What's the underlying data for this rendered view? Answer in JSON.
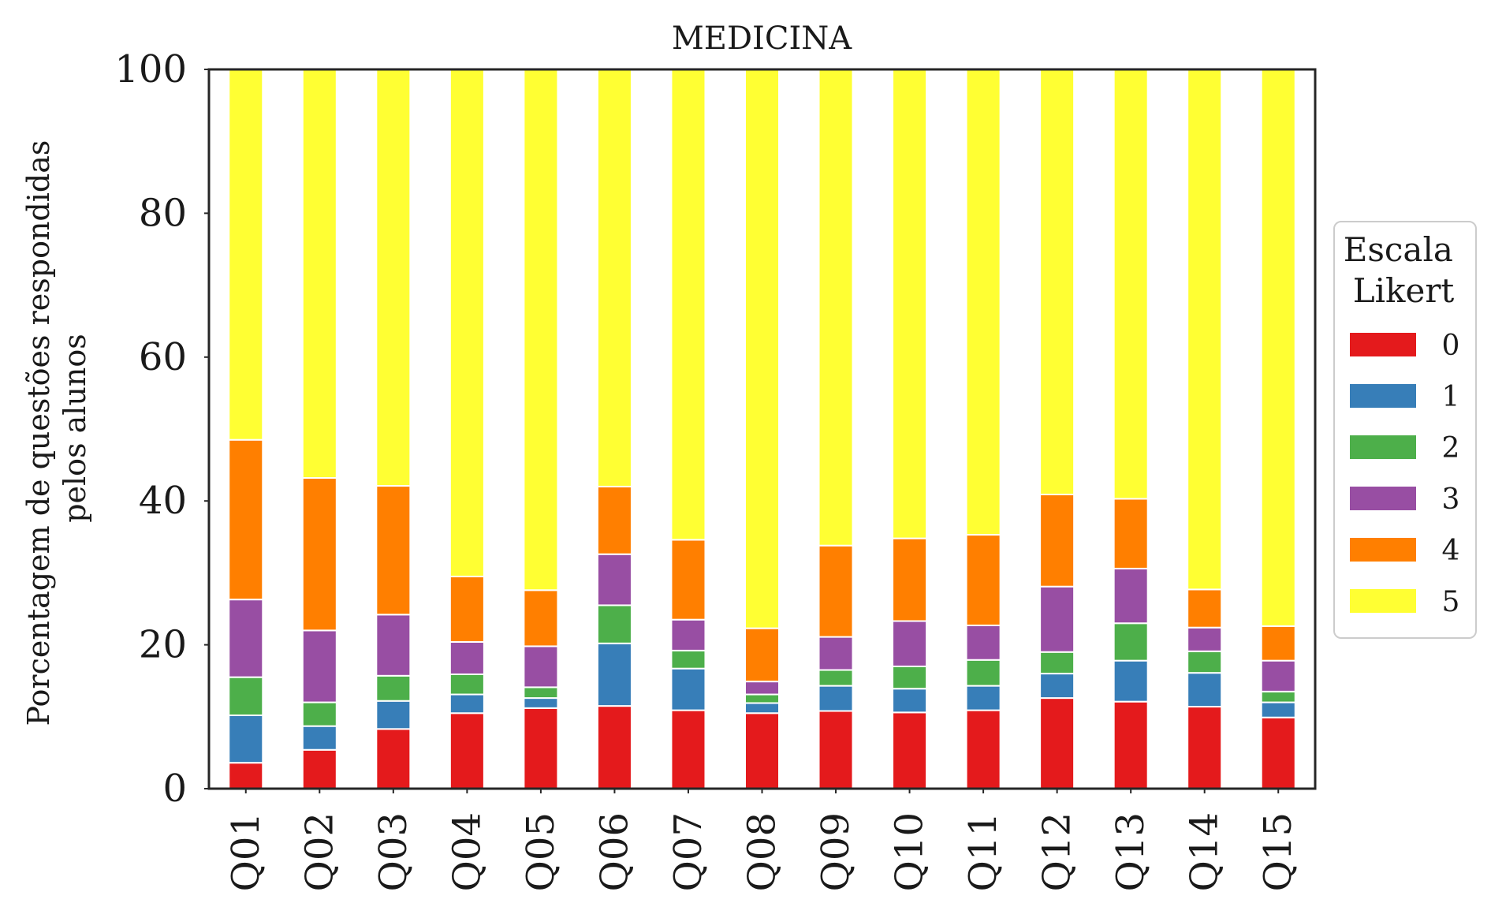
{
  "chart_data": {
    "type": "bar",
    "stacked": true,
    "title": "MEDICINA",
    "xlabel": "",
    "ylabel": [
      "Porcentagem de questões respondidas",
      "pelos alunos"
    ],
    "ylim": [
      0,
      100
    ],
    "yticks": [
      0,
      20,
      40,
      60,
      80,
      100
    ],
    "grid": false,
    "legend": {
      "title": [
        "Escala",
        "Likert"
      ],
      "placement": "right"
    },
    "categories": [
      "Q01",
      "Q02",
      "Q03",
      "Q04",
      "Q05",
      "Q06",
      "Q07",
      "Q08",
      "Q09",
      "Q10",
      "Q11",
      "Q12",
      "Q13",
      "Q14",
      "Q15"
    ],
    "series": [
      {
        "name": "0",
        "color": "#e41a1c",
        "values": [
          3.6,
          5.4,
          8.3,
          10.5,
          11.2,
          11.5,
          10.9,
          10.5,
          10.8,
          10.6,
          10.9,
          12.6,
          12.1,
          11.4,
          9.9
        ]
      },
      {
        "name": "1",
        "color": "#377eb8",
        "values": [
          6.6,
          3.3,
          3.9,
          2.6,
          1.4,
          8.7,
          5.8,
          1.4,
          3.5,
          3.3,
          3.4,
          3.4,
          5.7,
          4.7,
          2.1
        ]
      },
      {
        "name": "2",
        "color": "#4daf4a",
        "values": [
          5.3,
          3.3,
          3.5,
          2.8,
          1.5,
          5.3,
          2.5,
          1.2,
          2.2,
          3.1,
          3.6,
          3.0,
          5.2,
          3.0,
          1.5
        ]
      },
      {
        "name": "3",
        "color": "#984ea3",
        "values": [
          10.8,
          10.0,
          8.5,
          4.5,
          5.7,
          7.1,
          4.3,
          1.8,
          4.6,
          6.3,
          4.8,
          9.1,
          7.6,
          3.3,
          4.3
        ]
      },
      {
        "name": "4",
        "color": "#ff7f00",
        "values": [
          22.2,
          21.2,
          17.9,
          9.1,
          7.8,
          9.4,
          11.1,
          7.4,
          12.7,
          11.5,
          12.6,
          12.8,
          9.7,
          5.3,
          4.8
        ]
      },
      {
        "name": "5",
        "color": "#ffff33",
        "values": [
          51.5,
          56.8,
          57.9,
          70.5,
          72.4,
          58.0,
          65.4,
          77.7,
          66.2,
          65.2,
          64.7,
          59.1,
          59.7,
          72.3,
          77.4
        ]
      }
    ]
  }
}
